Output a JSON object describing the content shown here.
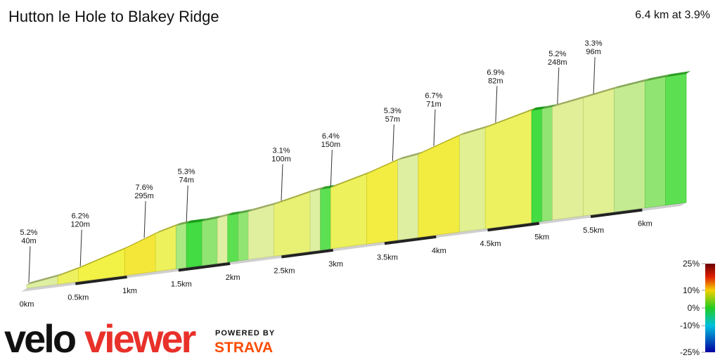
{
  "chart_data": {
    "type": "profile",
    "title": "Hutton le Hole to Blakey Ridge",
    "subtitle": "6.4 km at 3.9%",
    "xlim": [
      0,
      6.4
    ],
    "xticks": [
      {
        "value": 0,
        "label": "0km"
      },
      {
        "value": 0.5,
        "label": "0.5km"
      },
      {
        "value": 1,
        "label": "1km"
      },
      {
        "value": 1.5,
        "label": "1.5km"
      },
      {
        "value": 2,
        "label": "2km"
      },
      {
        "value": 2.5,
        "label": "2.5km"
      },
      {
        "value": 3,
        "label": "3km"
      },
      {
        "value": 3.5,
        "label": "3.5km"
      },
      {
        "value": 4,
        "label": "4km"
      },
      {
        "value": 4.5,
        "label": "4.5km"
      },
      {
        "value": 5,
        "label": "5km"
      },
      {
        "value": 5.5,
        "label": "5.5km"
      },
      {
        "value": 6,
        "label": "6km"
      }
    ],
    "segments": [
      {
        "from": 0,
        "to": 0.3,
        "grade": 3
      },
      {
        "from": 0.3,
        "to": 0.5,
        "grade": 5.2
      },
      {
        "from": 0.5,
        "to": 0.95,
        "grade": 6.2
      },
      {
        "from": 0.95,
        "to": 1.25,
        "grade": 7.6
      },
      {
        "from": 1.25,
        "to": 1.45,
        "grade": 5.3
      },
      {
        "from": 1.45,
        "to": 1.55,
        "grade": 2
      },
      {
        "from": 1.55,
        "to": 1.7,
        "grade": 0
      },
      {
        "from": 1.7,
        "to": 1.85,
        "grade": 1.5
      },
      {
        "from": 1.85,
        "to": 1.95,
        "grade": 3
      },
      {
        "from": 1.95,
        "to": 2.05,
        "grade": 0.5
      },
      {
        "from": 2.05,
        "to": 2.15,
        "grade": 1.5
      },
      {
        "from": 2.15,
        "to": 2.4,
        "grade": 3.1
      },
      {
        "from": 2.4,
        "to": 2.75,
        "grade": 4.5
      },
      {
        "from": 2.75,
        "to": 2.85,
        "grade": 3
      },
      {
        "from": 2.85,
        "to": 2.95,
        "grade": 0.5
      },
      {
        "from": 2.95,
        "to": 3.3,
        "grade": 5.3
      },
      {
        "from": 3.3,
        "to": 3.6,
        "grade": 6.7
      },
      {
        "from": 3.6,
        "to": 3.8,
        "grade": 3
      },
      {
        "from": 3.8,
        "to": 4.2,
        "grade": 6.9
      },
      {
        "from": 4.2,
        "to": 4.45,
        "grade": 3.5
      },
      {
        "from": 4.45,
        "to": 4.9,
        "grade": 5.2
      },
      {
        "from": 4.9,
        "to": 5.0,
        "grade": 0
      },
      {
        "from": 5.0,
        "to": 5.1,
        "grade": 1.5
      },
      {
        "from": 5.1,
        "to": 5.4,
        "grade": 3.3
      },
      {
        "from": 5.4,
        "to": 5.7,
        "grade": 3.5
      },
      {
        "from": 5.7,
        "to": 6.0,
        "grade": 2.5
      },
      {
        "from": 6.0,
        "to": 6.2,
        "grade": 1.5
      },
      {
        "from": 6.2,
        "to": 6.4,
        "grade": 0.5
      }
    ],
    "annotations": [
      {
        "x": 0.02,
        "grade": "5.2%",
        "length": "40m"
      },
      {
        "x": 0.52,
        "grade": "6.2%",
        "length": "120m"
      },
      {
        "x": 1.14,
        "grade": "7.6%",
        "length": "295m"
      },
      {
        "x": 1.55,
        "grade": "5.3%",
        "length": "74m"
      },
      {
        "x": 2.47,
        "grade": "3.1%",
        "length": "100m"
      },
      {
        "x": 2.95,
        "grade": "6.4%",
        "length": "150m"
      },
      {
        "x": 3.55,
        "grade": "5.3%",
        "length": "57m"
      },
      {
        "x": 3.95,
        "grade": "6.7%",
        "length": "71m"
      },
      {
        "x": 4.55,
        "grade": "6.9%",
        "length": "82m"
      },
      {
        "x": 5.15,
        "grade": "5.2%",
        "length": "248m"
      },
      {
        "x": 5.5,
        "grade": "3.3%",
        "length": "96m"
      }
    ],
    "color_scale": {
      "ticks": [
        {
          "value": 25,
          "label": "25%"
        },
        {
          "value": 10,
          "label": "10%"
        },
        {
          "value": 0,
          "label": "0%"
        },
        {
          "value": -10,
          "label": "-10%"
        },
        {
          "value": -25,
          "label": "-25%"
        }
      ],
      "lim": [
        -25,
        25
      ]
    }
  },
  "branding": {
    "logo_a": "velo",
    "logo_b": "viewer",
    "powered_by": "POWERED BY",
    "strava": "STRAVA"
  }
}
